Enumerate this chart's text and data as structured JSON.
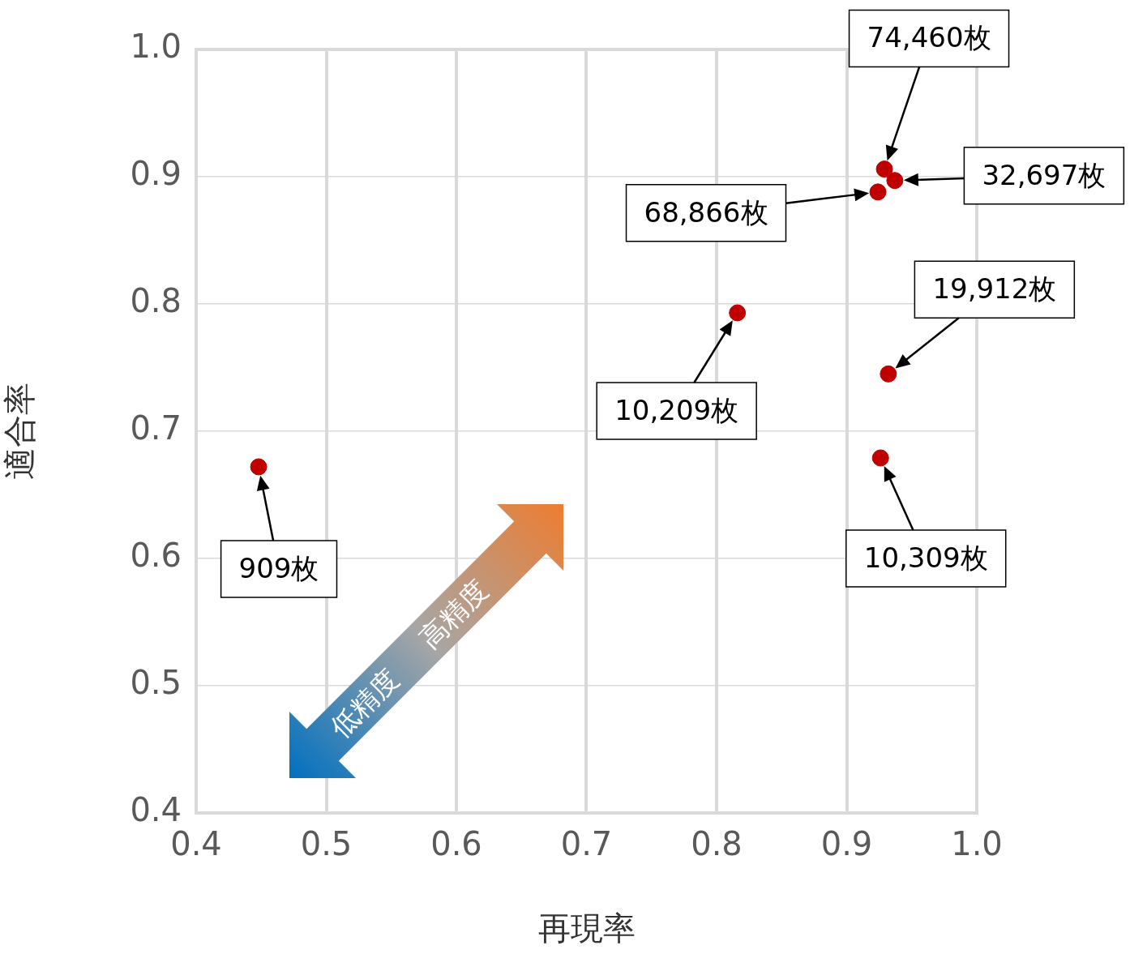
{
  "chart_data": {
    "type": "scatter",
    "xlabel": "再現率",
    "ylabel": "適合率",
    "marker": "circle",
    "grid": true,
    "series": [
      {
        "color": "#c00000",
        "x": [
          0.448,
          0.816,
          0.929,
          0.937,
          0.924,
          0.932,
          0.926
        ],
        "values": [
          0.672,
          0.793,
          0.906,
          0.897,
          0.888,
          0.745,
          0.679
        ]
      }
    ],
    "xlim": [
      0.4,
      1.0
    ],
    "ylim": [
      0.4,
      1.0
    ],
    "xticks": [
      0.4,
      0.5,
      0.6,
      0.7,
      0.8,
      0.9,
      {
        "value": 1,
        "label": "1.0"
      }
    ],
    "yticks": [
      0.4,
      0.5,
      0.6,
      0.7,
      0.8,
      0.9,
      {
        "value": 1,
        "label": "1.0"
      }
    ],
    "annotations": [
      "909枚",
      {
        "text": "10,209枚",
        "x": 0.816,
        "y": 0.793
      },
      "74,460枚",
      "32,697枚",
      "68,866枚",
      {
        "text": "19,912枚",
        "x": 0.932,
        "y": 0.745
      },
      "10,309枚",
      "低精度",
      "高精度"
    ]
  }
}
